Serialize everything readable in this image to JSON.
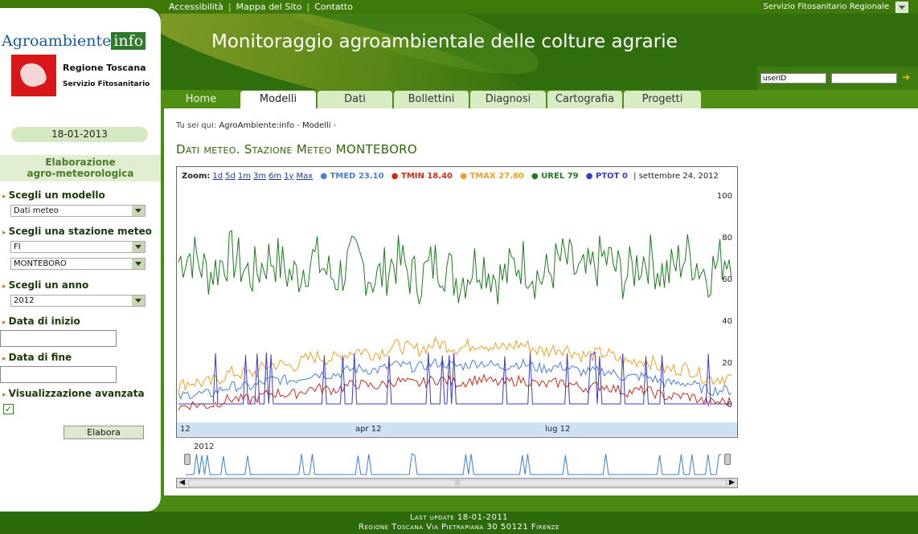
{
  "top_links": [
    "Accessibilità",
    "Mappa del Sito",
    "Contatto"
  ],
  "top_right": "Servizio Fitosanitario Regionale",
  "banner_title": "Monitoraggio agroambientale delle colture agrarie",
  "login": {
    "user_placeholder": "userID"
  },
  "tabs": [
    "Home",
    "Modelli",
    "Dati",
    "Bollettini",
    "Diagnosi",
    "Cartografia",
    "Progetti"
  ],
  "logo": {
    "main": "Agroambiente",
    "suffix": "info",
    "region": "Regione Toscana",
    "service": "Servizio Fitosanitario"
  },
  "sidebar": {
    "date": "18-01-2013",
    "section_title_1": "Elaborazione",
    "section_title_2": "agro-meteorologica",
    "model_label": "Scegli un modello",
    "model_value": "Dati meteo",
    "station_label": "Scegli una stazione meteo",
    "province_value": "FI",
    "station_value": "MONTEBORO",
    "year_label": "Scegli un anno",
    "year_value": "2012",
    "start_label": "Data di inizio",
    "end_label": "Data di fine",
    "advanced_label": "Visualizzazione avanzata",
    "button": "Elabora"
  },
  "breadcrumb": {
    "prefix": "Tu sei qui: ",
    "home": "AgroAmbiente:info",
    "sep": " - ",
    "page": "Modelli",
    "end": " -"
  },
  "heading": "Dati meteo. Stazione Meteo MONTEBORO",
  "zoom": {
    "label": "Zoom:",
    "options": [
      "1d",
      "5d",
      "1m",
      "3m",
      "6m",
      "1y",
      "Max"
    ]
  },
  "legend_date": "settembre 24, 2012",
  "colors": {
    "TMED": "#4a7ed8",
    "TMIN": "#d02a18",
    "TMAX": "#f0a020",
    "UREL": "#1f7a1f",
    "PTOT": "#3a3ac8"
  },
  "chart_data": {
    "type": "line",
    "yticks": [
      0,
      20,
      40,
      60,
      80,
      100
    ],
    "ylim": [
      0,
      100
    ],
    "xticks": [
      "12",
      "apr 12",
      "lug 12"
    ],
    "series": [
      {
        "name": "TMED",
        "value": "23.10"
      },
      {
        "name": "TMIN",
        "value": "18.40"
      },
      {
        "name": "TMAX",
        "value": "27.80"
      },
      {
        "name": "UREL",
        "value": "79"
      },
      {
        "name": "PTOT",
        "value": "0"
      }
    ]
  },
  "navigator": {
    "year": "2012"
  },
  "footer": {
    "line1": "Last update 18-01-2011",
    "line2": "Regione Toscana Via Pietrapiana 30 50121 Firenze"
  }
}
